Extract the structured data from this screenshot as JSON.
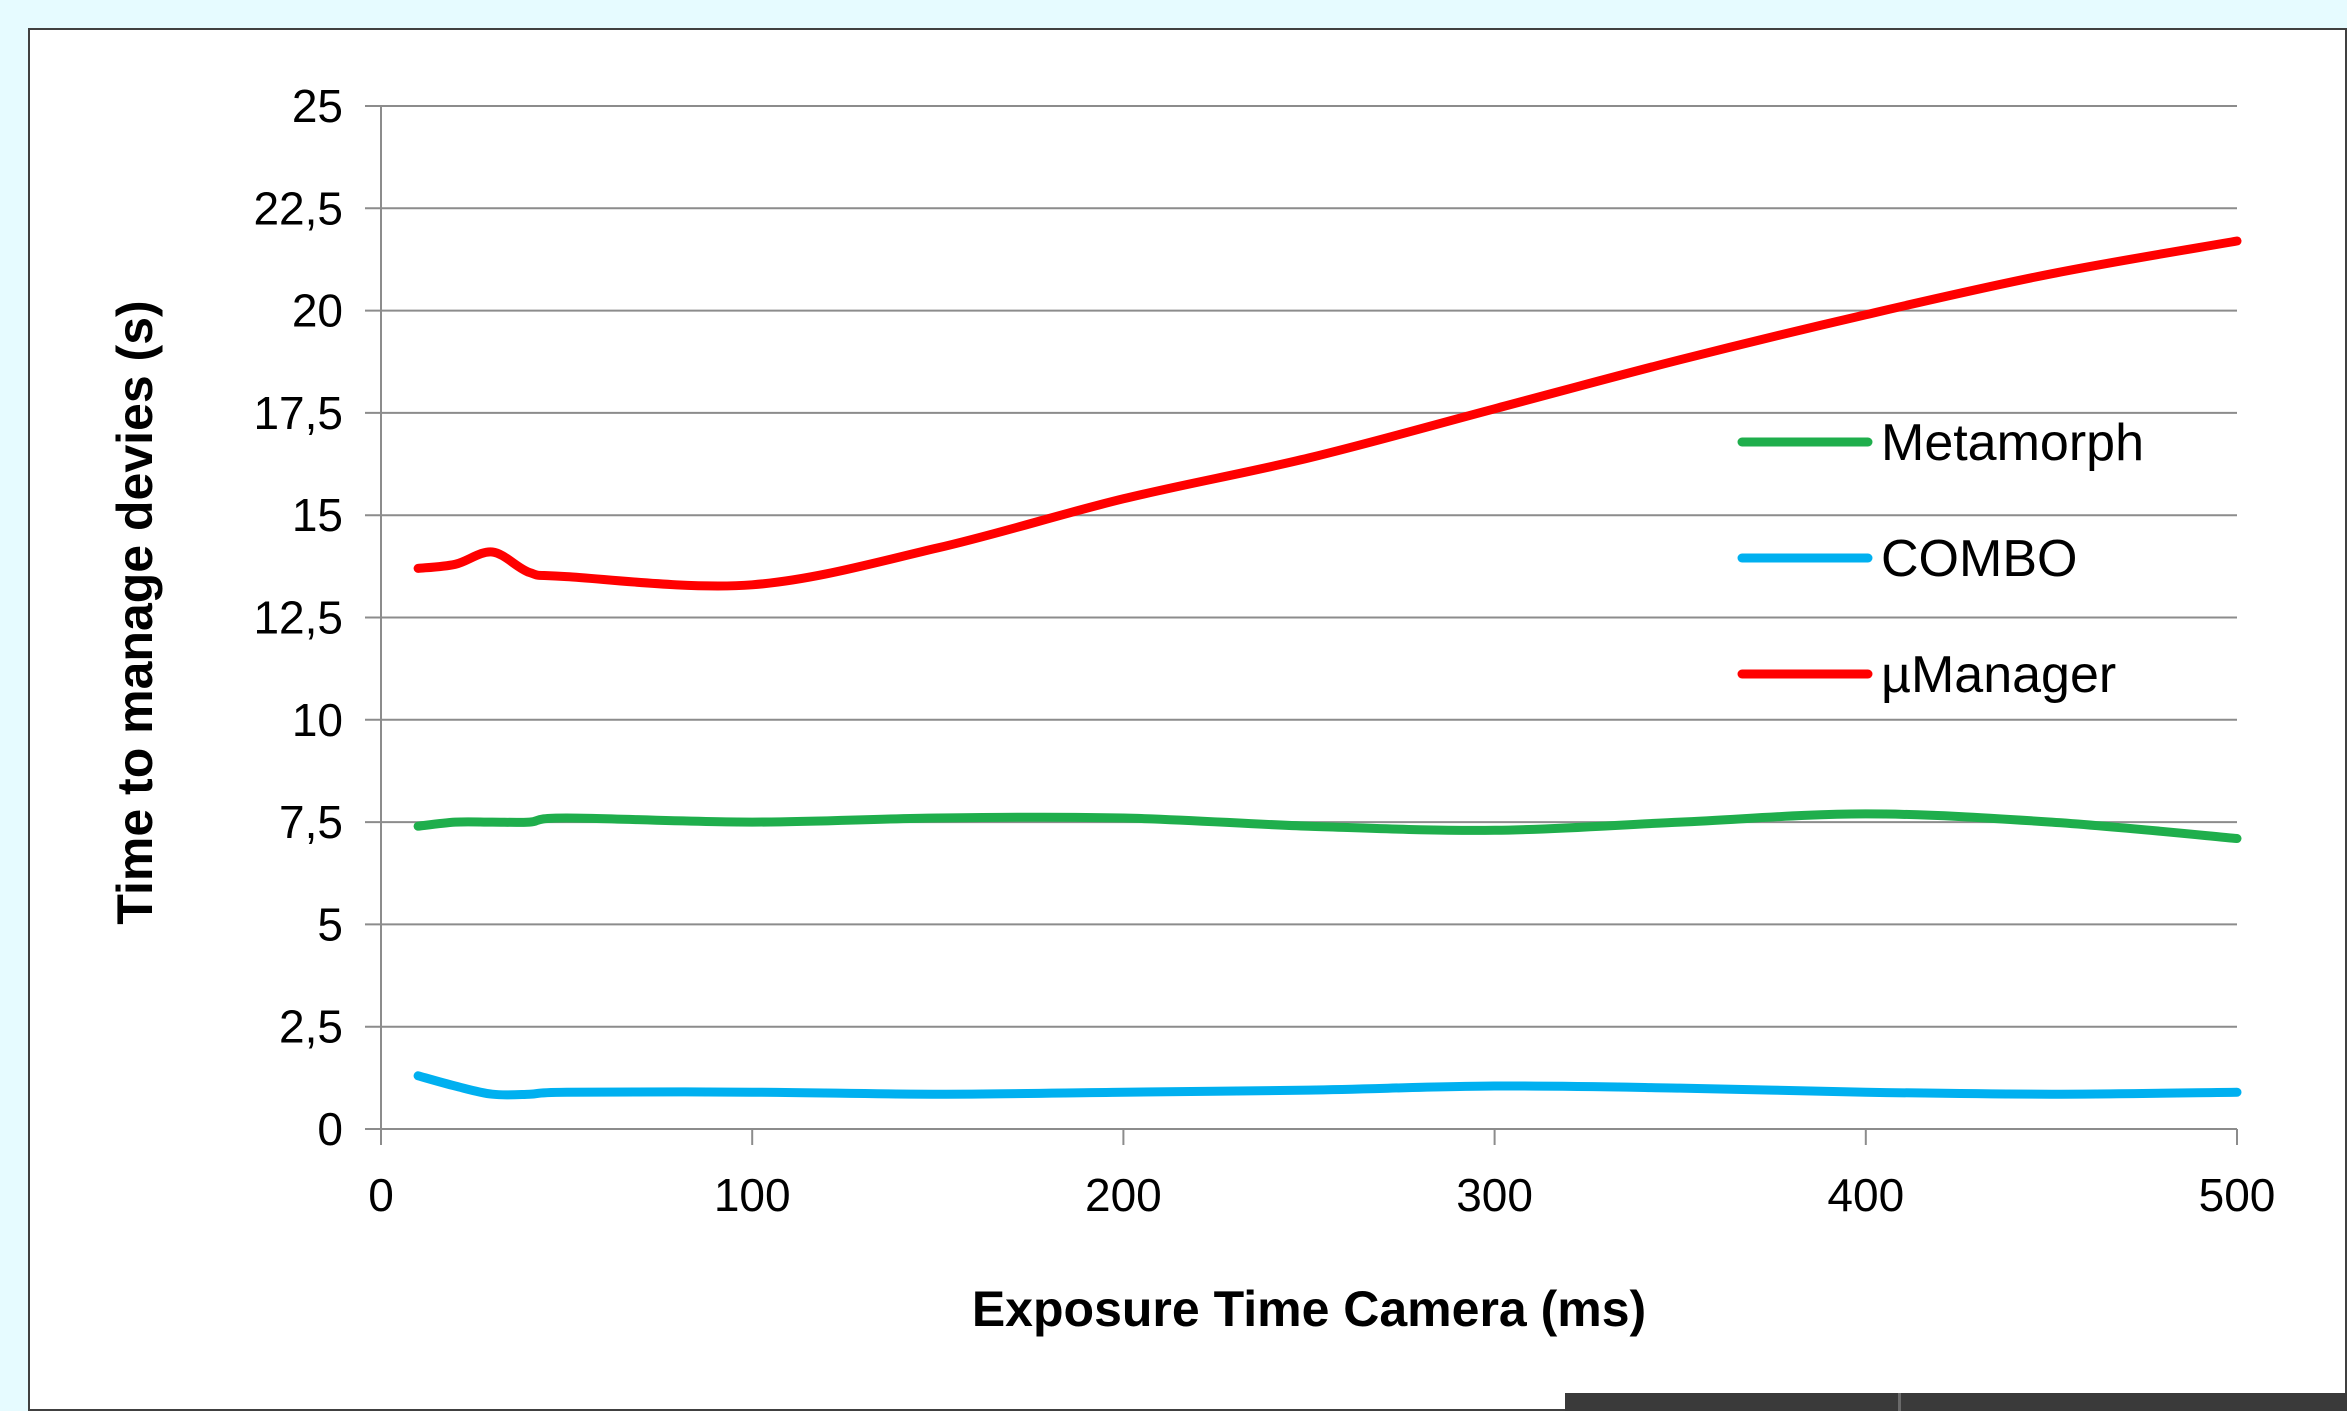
{
  "chart_data": {
    "type": "line",
    "title": "",
    "xlabel": "Exposure Time Camera (ms)",
    "ylabel": "Time to manage devies (s)",
    "xlim": [
      0,
      500
    ],
    "ylim": [
      0,
      25
    ],
    "x_ticks": [
      "0",
      "100",
      "200",
      "300",
      "400",
      "500"
    ],
    "y_ticks": [
      "0",
      "2,5",
      "5",
      "7,5",
      "10",
      "12,5",
      "15",
      "17,5",
      "20",
      "22,5",
      "25"
    ],
    "grid": "horizontal",
    "legend_position": "right",
    "series": [
      {
        "name": "Metamorph",
        "color": "#1fae4c",
        "points": [
          [
            10,
            7.4
          ],
          [
            20,
            7.5
          ],
          [
            30,
            7.5
          ],
          [
            40,
            7.5
          ],
          [
            50,
            7.6
          ],
          [
            100,
            7.5
          ],
          [
            150,
            7.6
          ],
          [
            200,
            7.6
          ],
          [
            250,
            7.4
          ],
          [
            300,
            7.3
          ],
          [
            350,
            7.5
          ],
          [
            400,
            7.7
          ],
          [
            450,
            7.5
          ],
          [
            500,
            7.1
          ]
        ]
      },
      {
        "name": "COMBO",
        "color": "#00b0f0",
        "points": [
          [
            10,
            1.3
          ],
          [
            20,
            1.05
          ],
          [
            30,
            0.85
          ],
          [
            40,
            0.85
          ],
          [
            50,
            0.9
          ],
          [
            100,
            0.9
          ],
          [
            150,
            0.85
          ],
          [
            200,
            0.9
          ],
          [
            250,
            0.95
          ],
          [
            300,
            1.05
          ],
          [
            350,
            1.0
          ],
          [
            400,
            0.9
          ],
          [
            450,
            0.85
          ],
          [
            500,
            0.9
          ]
        ]
      },
      {
        "name": "µManager",
        "color": "#ff0000",
        "points": [
          [
            10,
            13.7
          ],
          [
            20,
            13.8
          ],
          [
            30,
            14.1
          ],
          [
            40,
            13.6
          ],
          [
            50,
            13.5
          ],
          [
            100,
            13.3
          ],
          [
            150,
            14.2
          ],
          [
            200,
            15.4
          ],
          [
            250,
            16.4
          ],
          [
            300,
            17.6
          ],
          [
            350,
            18.8
          ],
          [
            400,
            19.9
          ],
          [
            450,
            20.9
          ],
          [
            500,
            21.7
          ]
        ]
      }
    ]
  }
}
